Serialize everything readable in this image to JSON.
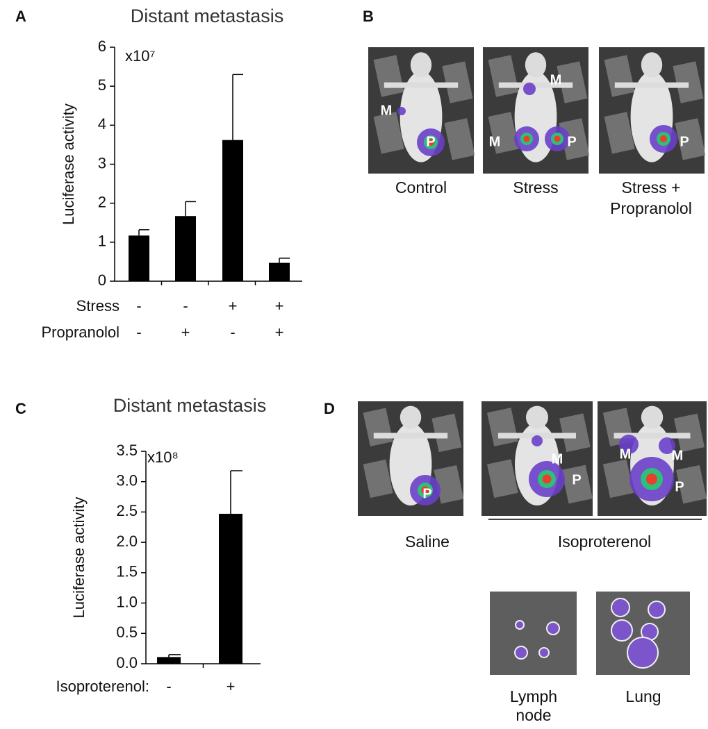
{
  "panel_labels": [
    "A",
    "B",
    "C",
    "D"
  ],
  "chart_data": [
    {
      "type": "bar",
      "title": "Distant metastasis",
      "y_label": "Luciferase activity",
      "axis_multiplier": "x10⁷",
      "values": [
        1.17,
        1.67,
        3.62,
        0.47
      ],
      "errors": [
        0.15,
        0.37,
        1.68,
        0.12
      ],
      "color": "#000000",
      "ylim": [
        0,
        6
      ],
      "yticks": [
        0,
        1,
        2,
        3,
        4,
        5,
        6
      ],
      "grid": false,
      "condition_rows": [
        {
          "label": "Stress",
          "values": [
            "-",
            "-",
            "+",
            "+"
          ]
        },
        {
          "label": "Propranolol",
          "values": [
            "-",
            "+",
            "-",
            "+"
          ]
        }
      ]
    },
    {
      "type": "bar",
      "title": "Distant metastasis",
      "y_label": "Luciferase activity",
      "axis_multiplier": "x10⁸",
      "values": [
        0.11,
        2.47
      ],
      "errors": [
        0.04,
        0.71
      ],
      "color": "#000000",
      "ylim": [
        0,
        3.5
      ],
      "yticks": [
        {
          "value": 0,
          "label": "0.0"
        },
        {
          "value": 0.5,
          "label": "0.5"
        },
        {
          "value": 1,
          "label": "1.0"
        },
        {
          "value": 1.5,
          "label": "1.5"
        },
        {
          "value": 2,
          "label": "2.0"
        },
        {
          "value": 2.5,
          "label": "2.5"
        },
        {
          "value": 3,
          "label": "3.0"
        },
        {
          "value": 3.5,
          "label": "3.5"
        }
      ],
      "grid": false,
      "condition_rows": [
        {
          "label": "Isoproterenol:",
          "values": [
            "-",
            "+"
          ]
        }
      ]
    }
  ],
  "images": {
    "b_tiles": [
      {
        "markers": [
          "M",
          "P"
        ]
      },
      {
        "markers": [
          "M",
          "M",
          "P"
        ]
      },
      {
        "markers": [
          "P"
        ]
      }
    ],
    "b_captions": [
      [
        "Control"
      ],
      [
        "Stress"
      ],
      [
        "Stress +",
        "Propranolol"
      ]
    ],
    "d_tiles": [
      {
        "markers": [
          "P"
        ]
      },
      {
        "markers": [
          "M",
          "P"
        ]
      },
      {
        "markers": [
          "M",
          "M",
          "P"
        ]
      }
    ],
    "d_captions": [
      [
        "Saline"
      ],
      [
        "Isoproterenol"
      ]
    ],
    "organ_captions": [
      [
        "Lymph",
        "node"
      ],
      [
        "Lung"
      ]
    ]
  }
}
